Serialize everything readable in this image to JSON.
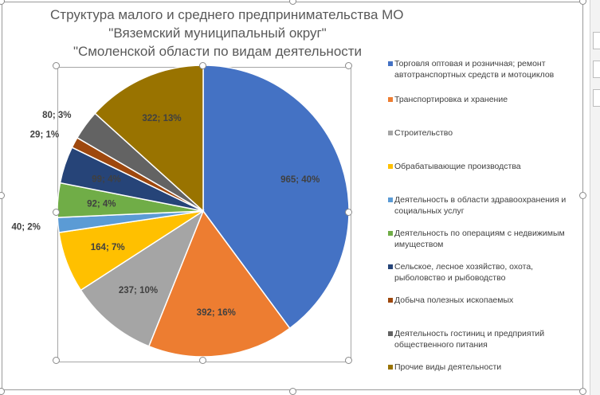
{
  "chart_data": {
    "type": "pie",
    "title_lines": [
      "Структура малого и среднего предпринимательства МО",
      "\"Вяземский муниципальный округ\"",
      "\"Смоленской области по видам деятельности"
    ],
    "categories": [
      "Торговля оптовая и розничная; ремонт автотранспортных средств и мотоциклов",
      "Транспортировка и хранение",
      "Строительство",
      "Обрабатывающие производства",
      "Деятельность в области здравоохранения и социальных услуг",
      "Деятельность по операциям с недвижимым имуществом",
      "Сельское, лесное хозяйство, охота, рыболовство и рыбоводство",
      "Добыча полезных ископаемых",
      "Деятельность гостиниц и предприятий общественного питания",
      "Прочие виды деятельности"
    ],
    "values": [
      965,
      392,
      237,
      164,
      40,
      92,
      99,
      29,
      80,
      322
    ],
    "data_labels": [
      "965; 40%",
      "392; 16%",
      "237; 10%",
      "164; 7%",
      "40; 2%",
      "92; 4%",
      "99; 4%",
      "29; 1%",
      "80; 3%",
      "322; 13%"
    ],
    "colors": [
      "#4472C4",
      "#ED7D31",
      "#A5A5A5",
      "#FFC000",
      "#5B9BD5",
      "#70AD47",
      "#264478",
      "#9E480E",
      "#636363",
      "#997300"
    ],
    "legend_position": "right"
  }
}
